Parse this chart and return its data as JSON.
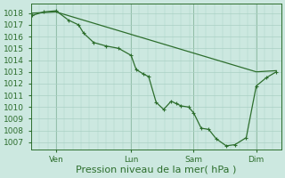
{
  "bg_color": "#cce8e0",
  "grid_color": "#aad0c4",
  "line_color": "#2d6e2d",
  "marker_color": "#2d6e2d",
  "xlabel": "Pression niveau de la mer( hPa )",
  "ylim": [
    1006.4,
    1018.8
  ],
  "yticks": [
    1007,
    1008,
    1009,
    1010,
    1011,
    1012,
    1013,
    1014,
    1015,
    1016,
    1017,
    1018
  ],
  "xtick_labels": [
    "Ven",
    "Lun",
    "Sam",
    "Dim"
  ],
  "xtick_positions": [
    1,
    4,
    6.5,
    9
  ],
  "xlim": [
    0,
    10
  ],
  "xlabel_fontsize": 8,
  "tick_fontsize": 6.5,
  "series1_x": [
    0.05,
    0.5,
    1.0,
    1.5,
    1.9,
    2.1,
    2.5,
    3.0,
    3.5,
    4.0,
    4.2,
    4.5,
    4.7,
    5.0,
    5.3,
    5.6,
    5.8,
    6.0,
    6.3,
    6.5,
    6.8,
    7.1,
    7.4,
    7.8,
    8.15,
    8.6,
    9.0,
    9.4,
    9.8
  ],
  "series1_y": [
    1017.8,
    1018.1,
    1018.2,
    1017.4,
    1017.0,
    1016.3,
    1015.5,
    1015.2,
    1015.0,
    1014.4,
    1013.2,
    1012.8,
    1012.6,
    1010.4,
    1009.8,
    1010.5,
    1010.3,
    1010.1,
    1010.0,
    1009.5,
    1008.2,
    1008.1,
    1007.3,
    1006.7,
    1006.8,
    1007.4,
    1011.8,
    1012.5,
    1013.0
  ],
  "series2_x": [
    0.05,
    1.0,
    9.0,
    9.8
  ],
  "series2_y": [
    1018.0,
    1018.1,
    1013.0,
    1013.1
  ]
}
